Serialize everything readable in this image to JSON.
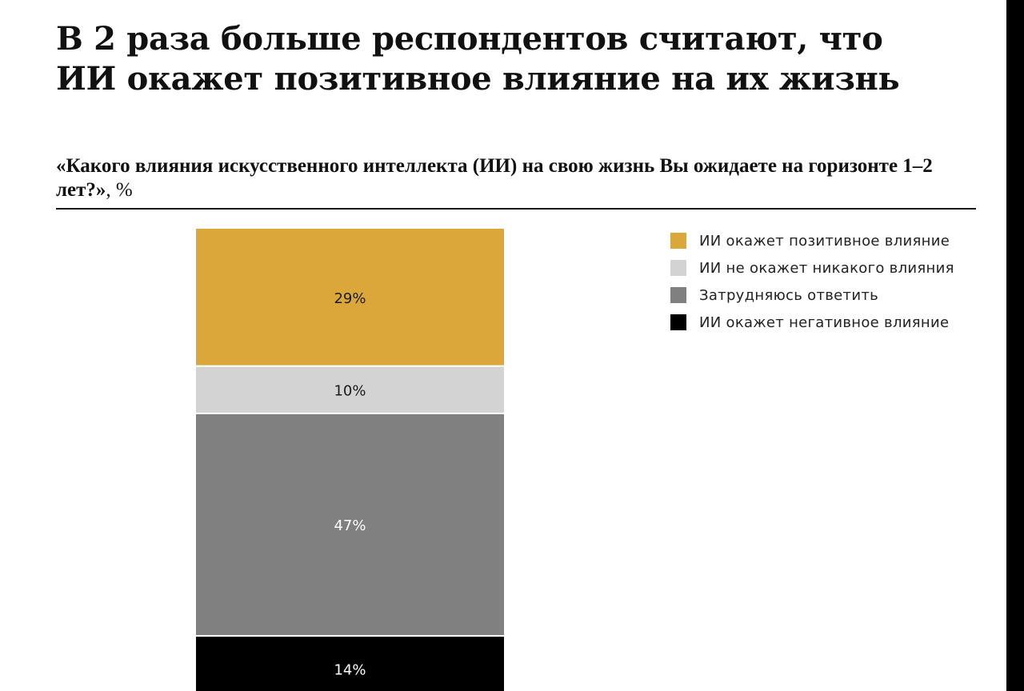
{
  "title": "В 2 раза больше респондентов считают, что ИИ окажет позитивное влияние на их жизнь",
  "question": "«Какого влияния искусственного интеллекта (ИИ) на свою жизнь Вы ожидаете на горизонте 1–2 лет?»",
  "unit_suffix": ", %",
  "colors": {
    "positive": "#DBA73B",
    "none": "#D3D3D3",
    "unsure": "#808080",
    "negative": "#000000",
    "label_dark": "#1a1a1a",
    "label_light": "#ffffff"
  },
  "legend": [
    {
      "label": "ИИ окажет позитивное влияние",
      "color": "#DBA73B"
    },
    {
      "label": "ИИ не окажет никакого влияния",
      "color": "#D3D3D3"
    },
    {
      "label": "Затрудняюсь ответить",
      "color": "#808080"
    },
    {
      "label": "ИИ окажет негативное влияние",
      "color": "#000000"
    }
  ],
  "chart_data": {
    "type": "bar",
    "stacked": true,
    "categories": [
      ""
    ],
    "series": [
      {
        "name": "ИИ окажет позитивное влияние",
        "values": [
          29
        ],
        "color": "#DBA73B",
        "data_label": "29%"
      },
      {
        "name": "ИИ не окажет никакого влияния",
        "values": [
          10
        ],
        "color": "#D3D3D3",
        "data_label": "10%"
      },
      {
        "name": "Затрудняюсь ответить",
        "values": [
          47
        ],
        "color": "#808080",
        "data_label": "47%"
      },
      {
        "name": "ИИ окажет негативное влияние",
        "values": [
          14
        ],
        "color": "#000000",
        "data_label": "14%"
      }
    ],
    "title": "«Какого влияния искусственного интеллекта (ИИ) на свою жизнь Вы ожидаете на горизонте 1–2 лет?», %",
    "xlabel": "",
    "ylabel": "",
    "ylim": [
      0,
      100
    ],
    "grid": false,
    "legend_position": "top-right"
  }
}
